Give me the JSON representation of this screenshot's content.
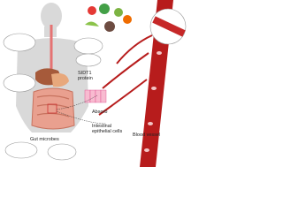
{
  "labels": {
    "protein": "SIDT1\nprotein",
    "absorb": "Absorb",
    "cells": "Intestinal\nepithelial cells",
    "vessel": "Blood vessel",
    "microbes": "Gut microbes"
  }
}
